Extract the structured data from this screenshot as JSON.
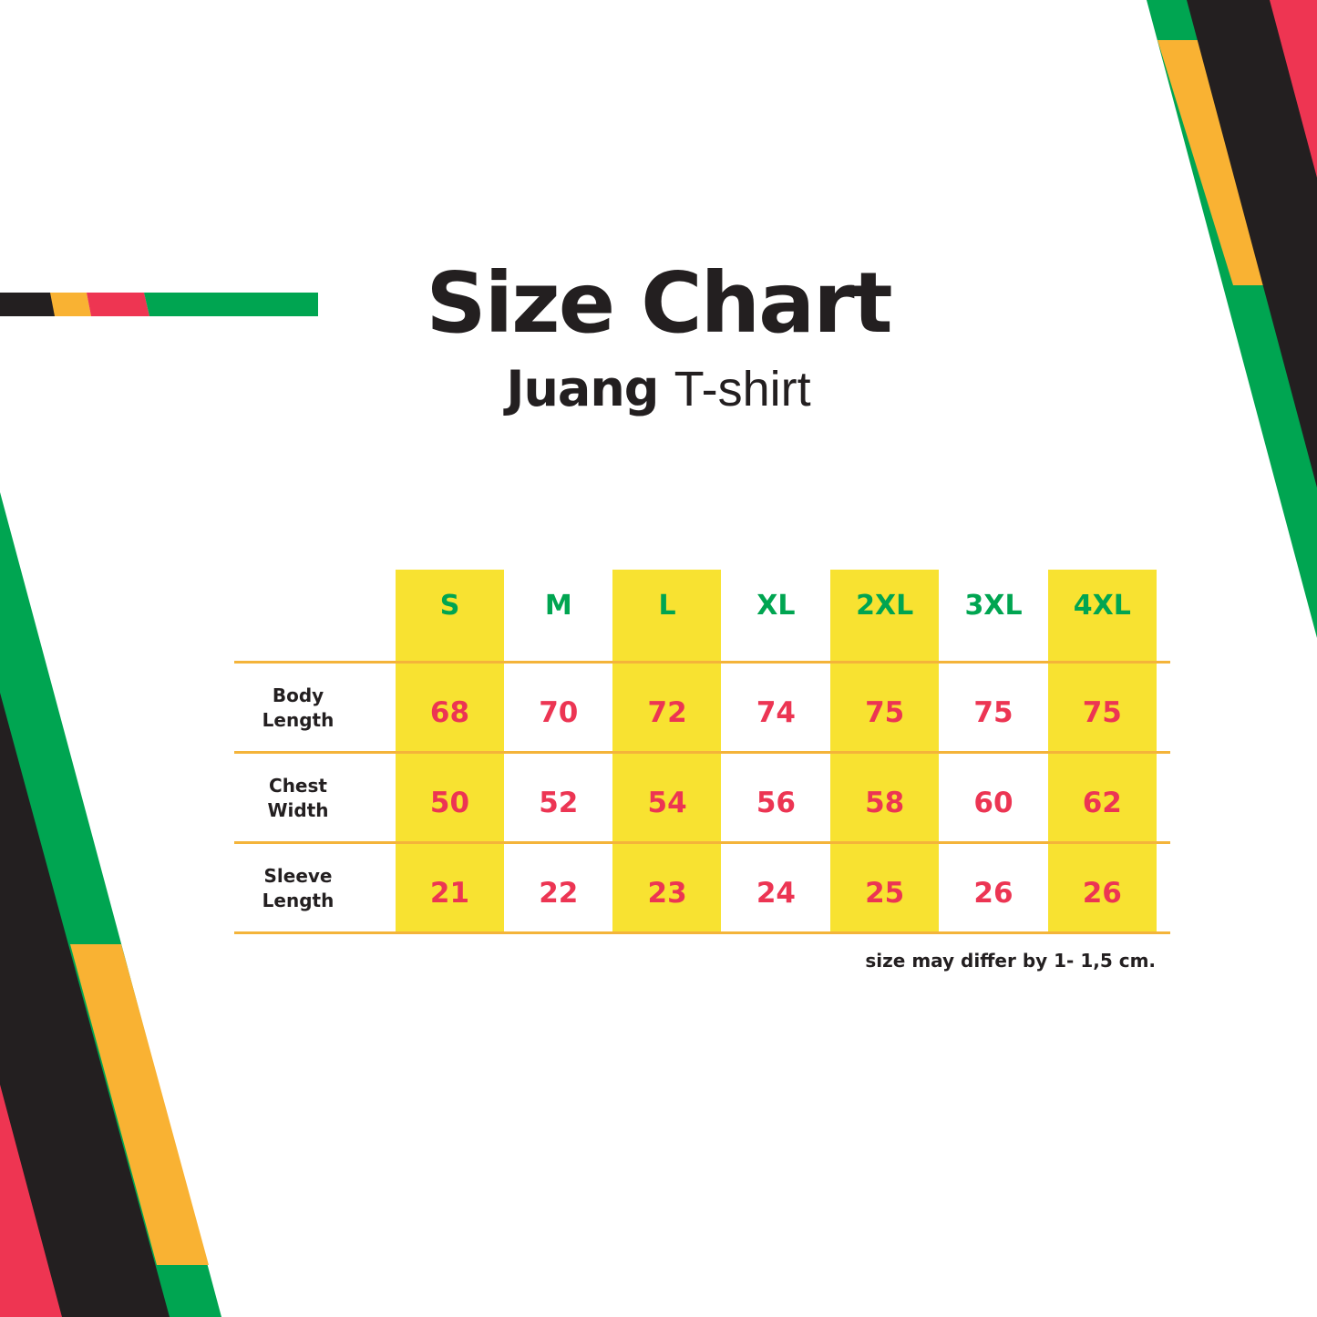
{
  "title": "Size Chart",
  "subtitle": {
    "brand": "Juang",
    "product": "T-shirt"
  },
  "colors": {
    "green": "#00a551",
    "orange": "#f9b233",
    "pink": "#ee3552",
    "black": "#231f20",
    "yellow": "#f8e231"
  },
  "table": {
    "sizes": [
      "S",
      "M",
      "L",
      "XL",
      "2XL",
      "3XL",
      "4XL"
    ],
    "rows": [
      {
        "label_line1": "Body",
        "label_line2": "Length",
        "values": [
          "68",
          "70",
          "72",
          "74",
          "75",
          "75",
          "75"
        ]
      },
      {
        "label_line1": "Chest",
        "label_line2": "Width",
        "values": [
          "50",
          "52",
          "54",
          "56",
          "58",
          "60",
          "62"
        ]
      },
      {
        "label_line1": "Sleeve",
        "label_line2": "Length",
        "values": [
          "21",
          "22",
          "23",
          "24",
          "25",
          "26",
          "26"
        ]
      }
    ]
  },
  "note": "size may differ by 1- 1,5 cm."
}
